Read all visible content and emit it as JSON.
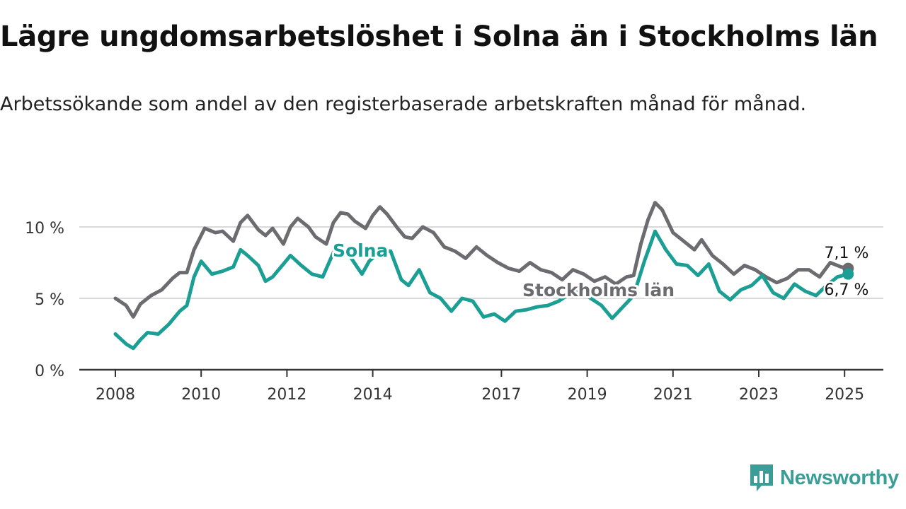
{
  "title": "Lägre ungdomsarbetslöshet i Solna än i Stockholms län",
  "subtitle": "Arbetssökande som andel av den registerbaserade arbetskraften månad för månad.",
  "brand": {
    "name": "Newsworthy",
    "color": "#3a9e96",
    "icon": "bar-chart-speech-bubble-icon"
  },
  "colors": {
    "solna": "#1b9e93",
    "stockholm": "#6b6b70",
    "grid": "#d9d9d9",
    "axis": "#333333"
  },
  "chart_data": {
    "type": "line",
    "title": "Lägre ungdomsarbetslöshet i Solna än i Stockholms län",
    "subtitle": "Arbetssökande som andel av den registerbaserade arbetskraften månad för månad.",
    "xlabel": "",
    "ylabel": "",
    "x_ticks": [
      "2008",
      "2010",
      "2012",
      "2014",
      "2017",
      "2019",
      "2021",
      "2023",
      "2025"
    ],
    "y_ticks": [
      "0 %",
      "5 %",
      "10 %"
    ],
    "ylim": [
      0,
      12
    ],
    "xlim": [
      "2007-10",
      "2025-12"
    ],
    "grid": true,
    "legend": "inline labels",
    "series": [
      {
        "name": "Stockholms län",
        "color": "#6b6b70",
        "end_label": "7,1 %",
        "points": [
          [
            "2008-01",
            5.0
          ],
          [
            "2008-04",
            4.5
          ],
          [
            "2008-06",
            3.7
          ],
          [
            "2008-08",
            4.6
          ],
          [
            "2008-11",
            5.2
          ],
          [
            "2009-02",
            5.6
          ],
          [
            "2009-05",
            6.4
          ],
          [
            "2009-07",
            6.8
          ],
          [
            "2009-09",
            6.8
          ],
          [
            "2009-11",
            8.4
          ],
          [
            "2010-02",
            9.9
          ],
          [
            "2010-05",
            9.6
          ],
          [
            "2010-07",
            9.7
          ],
          [
            "2010-10",
            9.0
          ],
          [
            "2010-12",
            10.3
          ],
          [
            "2011-02",
            10.8
          ],
          [
            "2011-05",
            9.8
          ],
          [
            "2011-07",
            9.4
          ],
          [
            "2011-09",
            9.9
          ],
          [
            "2011-12",
            8.8
          ],
          [
            "2012-02",
            10.0
          ],
          [
            "2012-04",
            10.6
          ],
          [
            "2012-07",
            10.0
          ],
          [
            "2012-09",
            9.3
          ],
          [
            "2012-12",
            8.8
          ],
          [
            "2013-02",
            10.3
          ],
          [
            "2013-04",
            11.0
          ],
          [
            "2013-06",
            10.9
          ],
          [
            "2013-08",
            10.4
          ],
          [
            "2013-11",
            9.9
          ],
          [
            "2014-01",
            10.8
          ],
          [
            "2014-03",
            11.4
          ],
          [
            "2014-05",
            10.9
          ],
          [
            "2014-08",
            9.9
          ],
          [
            "2014-10",
            9.3
          ],
          [
            "2014-12",
            9.2
          ],
          [
            "2015-03",
            10.0
          ],
          [
            "2015-06",
            9.6
          ],
          [
            "2015-09",
            8.6
          ],
          [
            "2015-12",
            8.3
          ],
          [
            "2016-03",
            7.8
          ],
          [
            "2016-06",
            8.6
          ],
          [
            "2016-09",
            8.0
          ],
          [
            "2016-12",
            7.5
          ],
          [
            "2017-03",
            7.1
          ],
          [
            "2017-06",
            6.9
          ],
          [
            "2017-09",
            7.5
          ],
          [
            "2017-12",
            7.0
          ],
          [
            "2018-03",
            6.8
          ],
          [
            "2018-06",
            6.3
          ],
          [
            "2018-09",
            7.0
          ],
          [
            "2018-12",
            6.7
          ],
          [
            "2019-03",
            6.2
          ],
          [
            "2019-06",
            6.5
          ],
          [
            "2019-09",
            6.0
          ],
          [
            "2019-12",
            6.5
          ],
          [
            "2020-02",
            6.6
          ],
          [
            "2020-04",
            8.8
          ],
          [
            "2020-06",
            10.5
          ],
          [
            "2020-08",
            11.7
          ],
          [
            "2020-10",
            11.2
          ],
          [
            "2021-01",
            9.6
          ],
          [
            "2021-04",
            9.0
          ],
          [
            "2021-07",
            8.4
          ],
          [
            "2021-09",
            9.1
          ],
          [
            "2021-12",
            8.0
          ],
          [
            "2022-03",
            7.4
          ],
          [
            "2022-06",
            6.7
          ],
          [
            "2022-09",
            7.3
          ],
          [
            "2022-12",
            7.0
          ],
          [
            "2023-03",
            6.5
          ],
          [
            "2023-06",
            6.1
          ],
          [
            "2023-09",
            6.4
          ],
          [
            "2023-12",
            7.0
          ],
          [
            "2024-03",
            7.0
          ],
          [
            "2024-06",
            6.5
          ],
          [
            "2024-09",
            7.5
          ],
          [
            "2024-12",
            7.2
          ],
          [
            "2025-02",
            7.1
          ]
        ]
      },
      {
        "name": "Solna",
        "color": "#1b9e93",
        "end_label": "6,7 %",
        "points": [
          [
            "2008-01",
            2.5
          ],
          [
            "2008-04",
            1.8
          ],
          [
            "2008-06",
            1.5
          ],
          [
            "2008-08",
            2.1
          ],
          [
            "2008-10",
            2.6
          ],
          [
            "2009-01",
            2.5
          ],
          [
            "2009-04",
            3.2
          ],
          [
            "2009-07",
            4.1
          ],
          [
            "2009-09",
            4.5
          ],
          [
            "2009-11",
            6.5
          ],
          [
            "2010-01",
            7.6
          ],
          [
            "2010-04",
            6.7
          ],
          [
            "2010-07",
            6.9
          ],
          [
            "2010-10",
            7.2
          ],
          [
            "2010-12",
            8.4
          ],
          [
            "2011-02",
            8.0
          ],
          [
            "2011-05",
            7.3
          ],
          [
            "2011-07",
            6.2
          ],
          [
            "2011-09",
            6.5
          ],
          [
            "2011-12",
            7.4
          ],
          [
            "2012-02",
            8.0
          ],
          [
            "2012-05",
            7.3
          ],
          [
            "2012-08",
            6.7
          ],
          [
            "2012-11",
            6.5
          ],
          [
            "2013-02",
            8.2
          ],
          [
            "2013-04",
            8.8
          ],
          [
            "2013-07",
            7.8
          ],
          [
            "2013-10",
            6.7
          ],
          [
            "2013-12",
            7.6
          ],
          [
            "2014-03",
            8.3
          ],
          [
            "2014-06",
            8.3
          ],
          [
            "2014-09",
            6.3
          ],
          [
            "2014-11",
            5.9
          ],
          [
            "2015-02",
            7.0
          ],
          [
            "2015-05",
            5.4
          ],
          [
            "2015-08",
            5.0
          ],
          [
            "2015-11",
            4.1
          ],
          [
            "2016-02",
            5.0
          ],
          [
            "2016-05",
            4.8
          ],
          [
            "2016-08",
            3.7
          ],
          [
            "2016-11",
            3.9
          ],
          [
            "2017-02",
            3.4
          ],
          [
            "2017-05",
            4.1
          ],
          [
            "2017-08",
            4.2
          ],
          [
            "2017-11",
            4.4
          ],
          [
            "2018-02",
            4.5
          ],
          [
            "2018-05",
            4.8
          ],
          [
            "2018-08",
            5.3
          ],
          [
            "2018-11",
            5.5
          ],
          [
            "2019-02",
            5.0
          ],
          [
            "2019-05",
            4.5
          ],
          [
            "2019-08",
            3.6
          ],
          [
            "2019-11",
            4.4
          ],
          [
            "2020-02",
            5.2
          ],
          [
            "2020-05",
            7.6
          ],
          [
            "2020-08",
            9.7
          ],
          [
            "2020-11",
            8.4
          ],
          [
            "2021-02",
            7.4
          ],
          [
            "2021-05",
            7.3
          ],
          [
            "2021-08",
            6.6
          ],
          [
            "2021-11",
            7.4
          ],
          [
            "2022-02",
            5.5
          ],
          [
            "2022-05",
            4.9
          ],
          [
            "2022-08",
            5.6
          ],
          [
            "2022-11",
            5.9
          ],
          [
            "2023-02",
            6.6
          ],
          [
            "2023-05",
            5.4
          ],
          [
            "2023-08",
            5.0
          ],
          [
            "2023-11",
            6.0
          ],
          [
            "2024-02",
            5.5
          ],
          [
            "2024-05",
            5.2
          ],
          [
            "2024-08",
            5.9
          ],
          [
            "2024-11",
            6.5
          ],
          [
            "2025-02",
            6.7
          ]
        ]
      }
    ],
    "annotations": [
      {
        "text": "Solna",
        "series": "Solna"
      },
      {
        "text": "Stockholms län",
        "series": "Stockholms län"
      }
    ]
  }
}
